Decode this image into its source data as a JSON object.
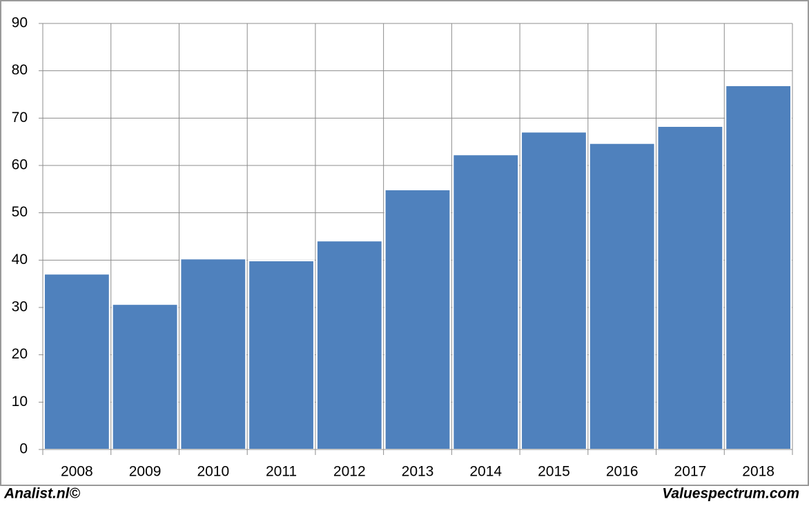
{
  "chart_data": {
    "type": "bar",
    "categories": [
      "2008",
      "2009",
      "2010",
      "2011",
      "2012",
      "2013",
      "2014",
      "2015",
      "2016",
      "2017",
      "2018"
    ],
    "values": [
      37.1,
      30.7,
      40.3,
      39.9,
      44.1,
      54.9,
      62.3,
      67.1,
      64.7,
      68.3,
      76.9
    ],
    "color": "#4f81bd",
    "ylim": [
      0,
      90
    ],
    "yticks": [
      0,
      10,
      20,
      30,
      40,
      50,
      60,
      70,
      80,
      90
    ],
    "grid": true
  },
  "footer": {
    "left": "Analist.nl©",
    "right": "Valuespectrum.com"
  }
}
